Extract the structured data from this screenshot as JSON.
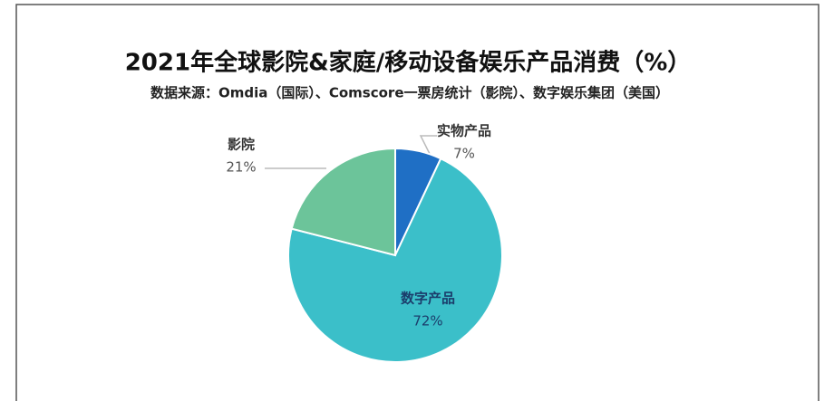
{
  "chart_data": {
    "type": "pie",
    "title": "2021年全球影院&家庭/移动设备娱乐产品消费（%）",
    "subtitle": "数据来源：Omdia（国际）、Comscore一票房统计（影院）、数字娱乐集团（美国）",
    "categories": [
      "实物产品",
      "数字产品",
      "影院"
    ],
    "values": [
      7,
      72,
      21
    ],
    "value_labels": [
      "7%",
      "72%",
      "21%"
    ],
    "colors": [
      "#1f6fc5",
      "#3bbfc9",
      "#6cc49a"
    ]
  }
}
